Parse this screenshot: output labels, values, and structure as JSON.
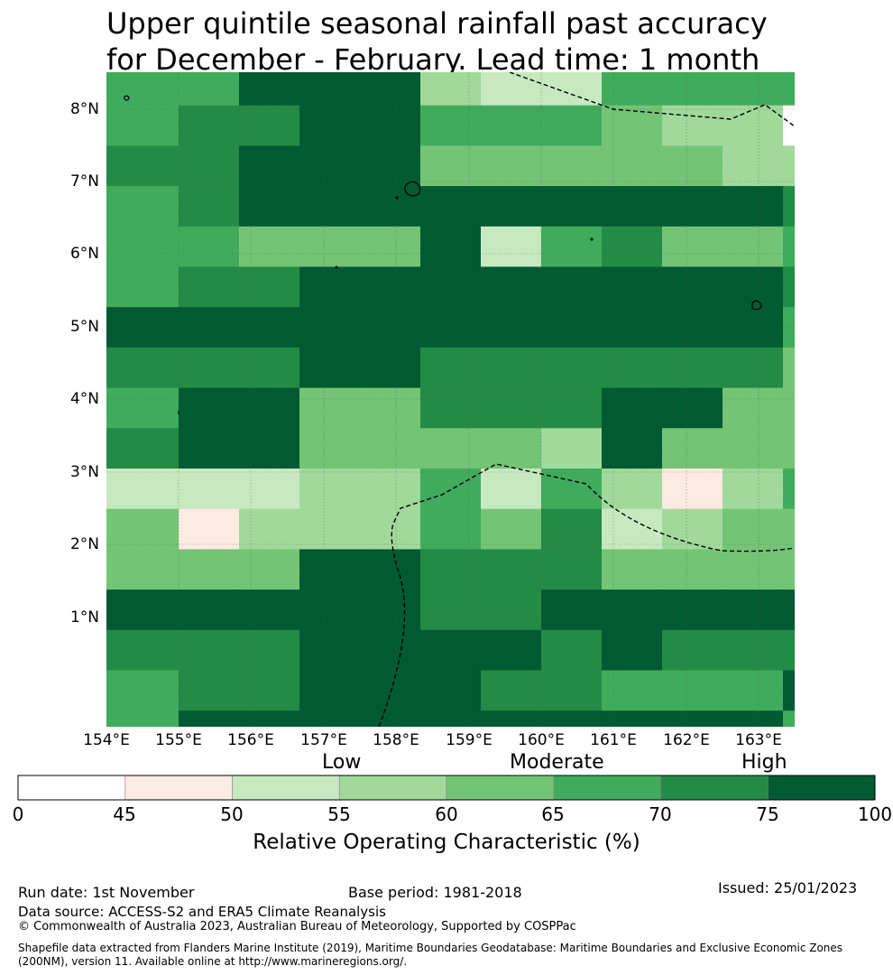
{
  "title": {
    "line1": "Upper quintile seasonal rainfall past accuracy",
    "line2": "for December - February. Lead time: 1 month"
  },
  "map": {
    "lat_labels": [
      "8°N",
      "7°N",
      "6°N",
      "5°N",
      "4°N",
      "3°N",
      "2°N",
      "1°N"
    ],
    "lon_labels": [
      "154°E",
      "155°E",
      "156°E",
      "157°E",
      "158°E",
      "159°E",
      "160°E",
      "161°E",
      "162°E",
      "163°E"
    ],
    "grid_lon_range": [
      153.9,
      163.5
    ],
    "grid_lat_range": [
      -0.15,
      8.5
    ],
    "category_colors": [
      "#ffffff",
      "#fdeae1",
      "#c7e9c0",
      "#a1d99b",
      "#74c476",
      "#41ab5d",
      "#238b45",
      "#005a32"
    ],
    "grid_rows_north_to_south": [
      "55777322555544",
      "55777322555544",
      "56677555433002",
      "56677555433002",
      "66777444443323",
      "66777444443323",
      "56777777777654",
      "56777777777654",
      "55444725644554",
      "55444725644554",
      "56677777777652",
      "56677777777652",
      "77777777777542",
      "77777777777542",
      "66677666666446",
      "66677666666446",
      "57744666774442",
      "57744666774442",
      "67744443744444",
      "67744443744444",
      "22233525313552",
      "22233525313552",
      "41333546234447",
      "41333546234447",
      "44477666444432",
      "44477666444432",
      "77777667777754",
      "77777667777754",
      "66677776766666",
      "66677776766666",
      "56677766555777",
      "56677766555777",
      "57777777777555",
      "57777777777555",
      "56777777777777",
      "56777777777777",
      "77777767777777",
      "77777767777777",
      "47777777777777",
      "47777777777777"
    ]
  },
  "legend": {
    "level_low": "Low",
    "level_moderate": "Moderate",
    "level_high": "High",
    "ticks": [
      "0",
      "45",
      "50",
      "55",
      "60",
      "65",
      "70",
      "75",
      "100"
    ],
    "label": "Relative Operating Characteristic (%)"
  },
  "footer": {
    "run_date": "Run date: 1st November",
    "base_period": "Base period: 1981-2018",
    "issued": "Issued: 25/01/2023",
    "data_source": "Data source: ACCESS-S2 and ERA5 Climate Reanalysis",
    "copyright": "© Commonwealth of Australia 2023, Australian Bureau of Meteorology, Supported by COSPPac",
    "shapefile_line1": "Shapefile data extracted from Flanders Marine Institute (2019), Maritime Boundaries Geodatabase: Maritime Boundaries and Exclusive Economic Zones",
    "shapefile_line2": "(200NM), version 11. Available online at http://www.marineregions.org/."
  }
}
